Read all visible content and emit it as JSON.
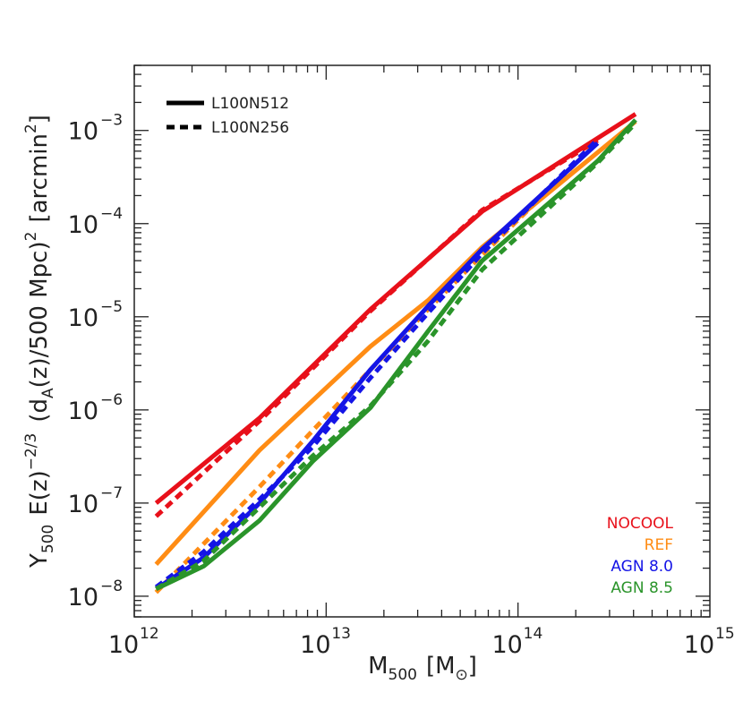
{
  "chart_data": {
    "type": "line",
    "xlabel": "M",
    "xlabel_sub": "500",
    "xlabel_unit_open": "[M",
    "xlabel_unit_sub": "⊙",
    "xlabel_unit_close": "]",
    "ylabel_parts": {
      "y": "Y",
      "y_sub": "500",
      "ez": "E(z)",
      "ez_exp": "−2/3",
      "da": "(d",
      "da_sub": "A",
      "da_rest": "(z)/500 Mpc)",
      "da_exp": "2",
      "unit_open": "[arcmin",
      "unit_exp": "2",
      "unit_close": "]"
    },
    "x_scale": "log",
    "y_scale": "log",
    "xlim": [
      1000000000000.0,
      1000000000000000.0
    ],
    "ylim": [
      6e-09,
      0.005
    ],
    "x_ticks": [
      {
        "value": 1000000000000.0,
        "base": "10",
        "exp": "12"
      },
      {
        "value": 10000000000000.0,
        "base": "10",
        "exp": "13"
      },
      {
        "value": 100000000000000.0,
        "base": "10",
        "exp": "14"
      },
      {
        "value": 1000000000000000.0,
        "base": "10",
        "exp": "15"
      }
    ],
    "y_ticks": [
      {
        "value": 1e-08,
        "base": "10",
        "exp": "−8"
      },
      {
        "value": 1e-07,
        "base": "10",
        "exp": "−7"
      },
      {
        "value": 1e-06,
        "base": "10",
        "exp": "−6"
      },
      {
        "value": 1e-05,
        "base": "10",
        "exp": "−5"
      },
      {
        "value": 0.0001,
        "base": "10",
        "exp": "−4"
      },
      {
        "value": 0.001,
        "base": "10",
        "exp": "−3"
      }
    ],
    "grid": false,
    "line_styles": [
      {
        "label": "L100N512",
        "dash": "solid"
      },
      {
        "label": "L100N256",
        "dash": "dashed"
      }
    ],
    "line_styles_position": "top-left",
    "series_labels_position": "bottom-right",
    "series": [
      {
        "name": "NOCOOL",
        "color": "#e8101a",
        "solid": {
          "x": [
            1300000000000.0,
            4500000000000.0,
            17000000000000.0,
            65000000000000.0,
            410000000000000.0
          ],
          "y": [
            1e-07,
            8.2e-07,
            1.2e-05,
            0.000135,
            0.0015
          ]
        },
        "dashed": {
          "x": [
            1300000000000.0,
            4500000000000.0,
            17000000000000.0,
            65000000000000.0,
            260000000000000.0
          ],
          "y": [
            7.2e-08,
            7.6e-07,
            1.15e-05,
            0.00014,
            0.00078
          ]
        }
      },
      {
        "name": "REF",
        "color": "#ff8c14",
        "solid": {
          "x": [
            1300000000000.0,
            4500000000000.0,
            17000000000000.0,
            34000000000000.0,
            65000000000000.0,
            410000000000000.0
          ],
          "y": [
            2.2e-08,
            3.7e-07,
            4.8e-06,
            1.5e-05,
            5.6e-05,
            0.00125
          ]
        },
        "dashed": {
          "x": [
            1300000000000.0,
            4500000000000.0,
            17000000000000.0,
            34000000000000.0,
            65000000000000.0,
            260000000000000.0
          ],
          "y": [
            1.1e-08,
            1.5e-07,
            2.7e-06,
            1.2e-05,
            4.6e-05,
            0.00075
          ]
        }
      },
      {
        "name": "AGN 8.0",
        "color": "#1414e6",
        "solid": {
          "x": [
            1300000000000.0,
            2300000000000.0,
            4500000000000.0,
            8500000000000.0,
            17000000000000.0,
            34000000000000.0,
            65000000000000.0,
            260000000000000.0
          ],
          "y": [
            1.2e-08,
            2.6e-08,
            1e-07,
            4.6e-07,
            2.7e-06,
            1.3e-05,
            5.3e-05,
            0.00073
          ]
        },
        "dashed": {
          "x": [
            1300000000000.0,
            2300000000000.0,
            4500000000000.0,
            8500000000000.0,
            17000000000000.0,
            34000000000000.0,
            65000000000000.0,
            260000000000000.0
          ],
          "y": [
            1.25e-08,
            3e-08,
            1.1e-07,
            4e-07,
            2.2e-06,
            1.1e-05,
            4.8e-05,
            0.0008
          ]
        }
      },
      {
        "name": "AGN 8.5",
        "color": "#2a942a",
        "solid": {
          "x": [
            1300000000000.0,
            2300000000000.0,
            4500000000000.0,
            8500000000000.0,
            17000000000000.0,
            34000000000000.0,
            65000000000000.0,
            260000000000000.0,
            410000000000000.0
          ],
          "y": [
            1.2e-08,
            2.1e-08,
            6.5e-08,
            2.8e-07,
            1.05e-06,
            7e-06,
            4e-05,
            0.00047,
            0.0013
          ]
        },
        "dashed": {
          "x": [
            1300000000000.0,
            2300000000000.0,
            4500000000000.0,
            8500000000000.0,
            17000000000000.0,
            34000000000000.0,
            65000000000000.0,
            260000000000000.0,
            410000000000000.0
          ],
          "y": [
            1.2e-08,
            2.4e-08,
            9e-08,
            3.2e-07,
            1.1e-06,
            5.5e-06,
            3.2e-05,
            0.00045,
            0.0012
          ]
        }
      }
    ]
  }
}
